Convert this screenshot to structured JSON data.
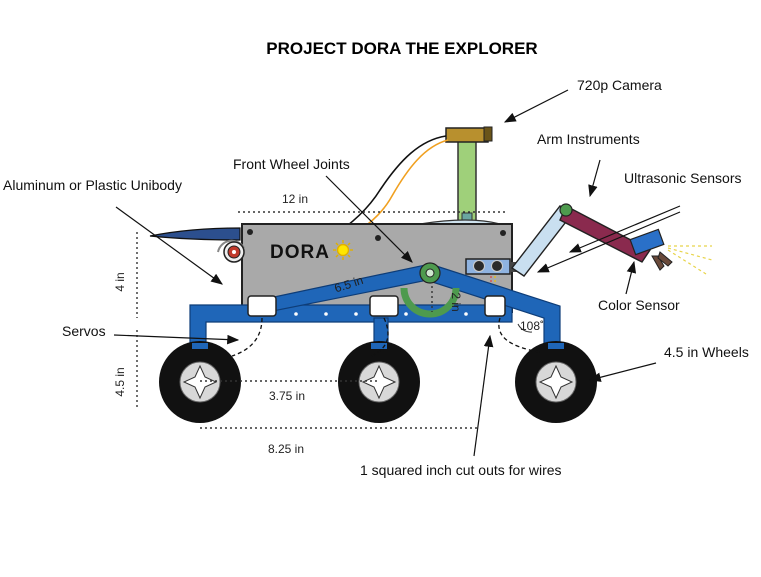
{
  "title": "PROJECT DORA THE EXPLORER",
  "body_logo": "DORA",
  "labels": {
    "camera": "720p Camera",
    "arm": "Arm Instruments",
    "ultrasonic": "Ultrasonic Sensors",
    "front_joints": "Front Wheel Joints",
    "unibody": "Aluminum or Plastic Unibody",
    "color_sensor": "Color Sensor",
    "servos": "Servos",
    "wheels": "4.5 in Wheels",
    "cutouts": "1 squared inch cut outs for wires"
  },
  "dimensions": {
    "body_length": "12 in",
    "body_height": "4 in",
    "wheel_height": "4.5 in",
    "joint_length": "6.5 in",
    "joint_offset": "2 in",
    "angle": "108˚",
    "wheel_spacing": "3.75 in",
    "wheelbase": "8.25 in"
  },
  "colors": {
    "body": "#a9a9a9",
    "chassis": "#1f66b8",
    "mast": "#9fd07a",
    "camera": "#b8902e",
    "arm_upper": "#c9dff0",
    "arm_lower": "#8a2a4e",
    "gear": "#4e9a4e",
    "tire": "#111111"
  }
}
